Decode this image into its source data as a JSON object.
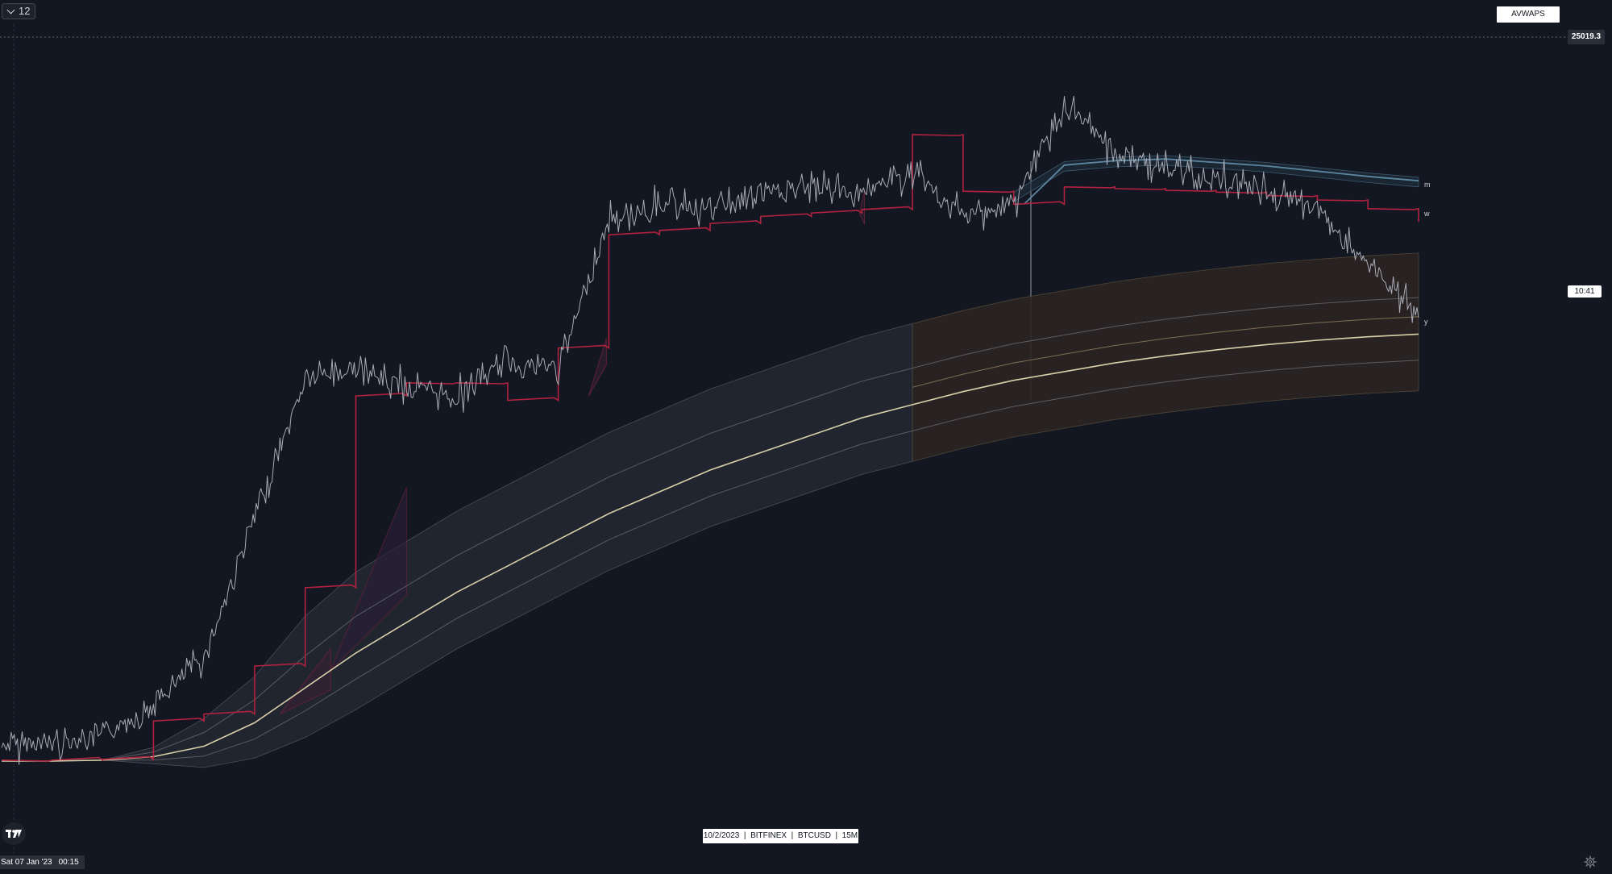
{
  "toolbar": {
    "interval_label": "12"
  },
  "indicator": {
    "name": "AVWAPS"
  },
  "price_scale": {
    "top_price_label": "25019.3",
    "countdown_label": "10:41"
  },
  "info_banner": {
    "date": "10/2/2023",
    "exchange": "BITFINEX",
    "symbol": "BTCUSD",
    "timeframe": "15M"
  },
  "crosshair": {
    "date_label": "Sat 07 Jan '23",
    "time_label": "00:15"
  },
  "series_markers": {
    "m": "m",
    "w": "w",
    "y": "y"
  },
  "icons": {
    "interval_toggle": "chevron-down-icon",
    "logo": "tradingview-logo-icon",
    "settings": "gear-icon"
  },
  "colors": {
    "background": "#131722",
    "price_line": "#a8abb5",
    "red_vwap": "#b2223e",
    "blue_vwap": "#5b86a0",
    "cream_vwap": "#d8d0a8",
    "band_fill": "#272b36",
    "brown_band": "#2b2522"
  },
  "chart_data": {
    "type": "line",
    "title": "",
    "xlabel": "",
    "ylabel": "",
    "series": [
      {
        "name": "BTCUSD",
        "values": [
          16880,
          16920,
          17000,
          17350,
          17900,
          19500,
          21100,
          21200,
          21000,
          20900,
          21300,
          21200,
          22900,
          23100,
          23050,
          23200,
          23300,
          23250,
          23450,
          22950,
          23100,
          24200,
          23700,
          23500,
          23400,
          23250,
          23050,
          22400,
          21800
        ]
      },
      {
        "name": "m",
        "values": [
          null,
          null,
          null,
          null,
          null,
          null,
          null,
          null,
          null,
          null,
          null,
          null,
          null,
          null,
          null,
          null,
          null,
          null,
          null,
          null,
          null,
          23550,
          23600,
          23620,
          23580,
          23540,
          23480,
          23420,
          23370
        ]
      },
      {
        "name": "w",
        "values": [
          16720,
          16720,
          16730,
          17170,
          17250,
          17800,
          18700,
          20900,
          21050,
          21050,
          20850,
          21450,
          22750,
          22800,
          22880,
          22960,
          23000,
          23040,
          23900,
          23250,
          23100,
          23300,
          23280,
          23260,
          23240,
          23200,
          23150,
          23050,
          22900
        ]
      },
      {
        "name": "y",
        "values": [
          16710,
          16710,
          16720,
          16760,
          16880,
          17150,
          17550,
          17950,
          18300,
          18650,
          18950,
          19250,
          19550,
          19800,
          20050,
          20250,
          20450,
          20650,
          20800,
          20950,
          21080,
          21180,
          21280,
          21360,
          21430,
          21490,
          21540,
          21580,
          21610
        ]
      }
    ],
    "y_axis": {
      "top_label": "25019.3"
    },
    "grid": false,
    "legend": "none"
  }
}
